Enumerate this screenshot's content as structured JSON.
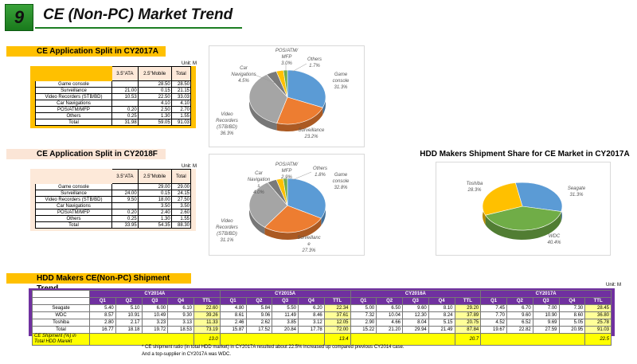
{
  "page": {
    "number": "9",
    "title": "CE (Non-PC) Market Trend"
  },
  "section1": {
    "title": "CE Application Split in CY2017A",
    "unit": "Unit: M",
    "columns": [
      "3.5\"ATA",
      "2.5\"Mobile",
      "Total"
    ],
    "rows": [
      {
        "name": "Game console",
        "c1": "",
        "c2": "28.50",
        "total": "28.50"
      },
      {
        "name": "Surveillance",
        "c1": "21.00",
        "c2": "0.15",
        "total": "21.15"
      },
      {
        "name": "Video Recorders (STB/BD)",
        "c1": "10.53",
        "c2": "22.50",
        "total": "33.03"
      },
      {
        "name": "Car Navigations",
        "c1": "",
        "c2": "4.10",
        "total": "4.10"
      },
      {
        "name": "POS/ATM/MFP",
        "c1": "0.20",
        "c2": "2.50",
        "total": "2.70"
      },
      {
        "name": "Others",
        "c1": "0.25",
        "c2": "1.30",
        "total": "1.55"
      },
      {
        "name": "Total",
        "c1": "31.98",
        "c2": "59.05",
        "total": "91.03"
      }
    ]
  },
  "section2": {
    "title": "CE Application Split in CY2018F",
    "unit": "Unit: M",
    "columns": [
      "3.5\"ATA",
      "2.5\"Mobile",
      "Total"
    ],
    "rows": [
      {
        "name": "Game console",
        "c1": "",
        "c2": "29.00",
        "total": "29.00"
      },
      {
        "name": "Surveillance",
        "c1": "24.00",
        "c2": "0.15",
        "total": "24.15"
      },
      {
        "name": "Video Recorders (STB/BD)",
        "c1": "9.50",
        "c2": "18.00",
        "total": "27.50"
      },
      {
        "name": "Car Navigations",
        "c1": "",
        "c2": "3.50",
        "total": "3.50"
      },
      {
        "name": "POS/ATM/MFP",
        "c1": "0.20",
        "c2": "2.40",
        "total": "2.60"
      },
      {
        "name": "Others",
        "c1": "0.25",
        "c2": "1.30",
        "total": "1.55"
      },
      {
        "name": "Total",
        "c1": "33.95",
        "c2": "54.35",
        "total": "88.30"
      }
    ]
  },
  "section3": {
    "title": "HDD Makers Shipment Share for CE Market in CY2017A"
  },
  "section4": {
    "title": "HDD Makers CE(Non-PC) Shipment Trend",
    "unit": "Unit: M",
    "years": [
      "CY2014A",
      "CY2015A",
      "CY2016A",
      "CY2017A"
    ],
    "quarters": [
      "Q1",
      "Q2",
      "Q3",
      "Q4",
      "TTL"
    ],
    "rows": [
      {
        "name": "Seagate",
        "v": [
          [
            "5.40",
            "5.10",
            "6.00",
            "6.10",
            "22.60"
          ],
          [
            "4.80",
            "5.84",
            "5.50",
            "6.20",
            "22.34"
          ],
          [
            "5.00",
            "6.50",
            "9.60",
            "8.10",
            "29.20"
          ],
          [
            "7.45",
            "6.70",
            "7.00",
            "7.30",
            "28.45"
          ]
        ]
      },
      {
        "name": "WDC",
        "v": [
          [
            "8.57",
            "10.91",
            "10.49",
            "9.30",
            "39.26"
          ],
          [
            "8.61",
            "9.06",
            "11.49",
            "8.46",
            "37.61"
          ],
          [
            "7.32",
            "10.04",
            "12.30",
            "8.24",
            "37.89"
          ],
          [
            "7.70",
            "9.60",
            "10.90",
            "8.60",
            "36.80"
          ]
        ]
      },
      {
        "name": "Toshiba",
        "v": [
          [
            "2.80",
            "2.17",
            "3.23",
            "3.13",
            "11.33"
          ],
          [
            "2.46",
            "2.62",
            "3.85",
            "3.12",
            "12.05"
          ],
          [
            "2.90",
            "4.66",
            "8.04",
            "5.15",
            "20.75"
          ],
          [
            "4.52",
            "6.52",
            "9.69",
            "5.05",
            "25.78"
          ]
        ]
      },
      {
        "name": "Total",
        "v": [
          [
            "16.77",
            "18.18",
            "19.72",
            "18.53",
            "73.19"
          ],
          [
            "15.87",
            "17.52",
            "20.84",
            "17.78",
            "72.00"
          ],
          [
            "15.22",
            "21.20",
            "29.94",
            "21.49",
            "87.84"
          ],
          [
            "19.67",
            "22.82",
            "27.59",
            "20.95",
            "91.03"
          ]
        ]
      }
    ],
    "ratio_label": "CE Shipment (%) in Total HDD Marekt",
    "ratios": [
      "13.0",
      "13.4",
      "20.7",
      "22.5"
    ],
    "notes": [
      "* CE shipment ratio (in total HDD market) in CY2017A resulted about 22.5% increased up compared previous CY2014 case.",
      "And a top-supplier in CY2017A was WDC."
    ]
  },
  "chart_data": [
    {
      "type": "pie",
      "title": "CE Application Split in CY2017A",
      "labels": [
        "Game console",
        "Surveillance",
        "Video Recorders (STB/BD)",
        "Car Navigations",
        "POS/ATM/MFP",
        "Others"
      ],
      "values": [
        31.3,
        23.2,
        36.3,
        4.5,
        3.0,
        1.7
      ],
      "display": [
        "31.3%",
        "23.2%",
        "36.3%",
        "4.5%",
        "3.0%",
        "1.7%"
      ],
      "colors": [
        "#5b9bd5",
        "#ed7d31",
        "#a5a5a5",
        "#7a7a7a",
        "#ffc000",
        "#70ad47"
      ]
    },
    {
      "type": "pie",
      "title": "CE Application Split in CY2018F",
      "labels": [
        "Game console",
        "Surveillance",
        "Video Recorders (STB/BD)",
        "Car Navigations",
        "POS/ATM/MFP",
        "Others"
      ],
      "values": [
        32.8,
        27.3,
        31.1,
        4.0,
        2.9,
        1.8
      ],
      "display": [
        "32.8%",
        "27.3%",
        "31.1%",
        "4.0%",
        "2.9%",
        "1.8%"
      ],
      "colors": [
        "#5b9bd5",
        "#ed7d31",
        "#a5a5a5",
        "#7a7a7a",
        "#ffc000",
        "#70ad47"
      ]
    },
    {
      "type": "pie",
      "title": "HDD Makers Shipment Share for CE Market in CY2017A",
      "labels": [
        "Seagate",
        "WDC",
        "Toshiba"
      ],
      "values": [
        31.3,
        40.4,
        28.3
      ],
      "display": [
        "31.3%",
        "40.4%",
        "28.3%"
      ],
      "colors": [
        "#5b9bd5",
        "#70ad47",
        "#ffc000"
      ]
    }
  ]
}
